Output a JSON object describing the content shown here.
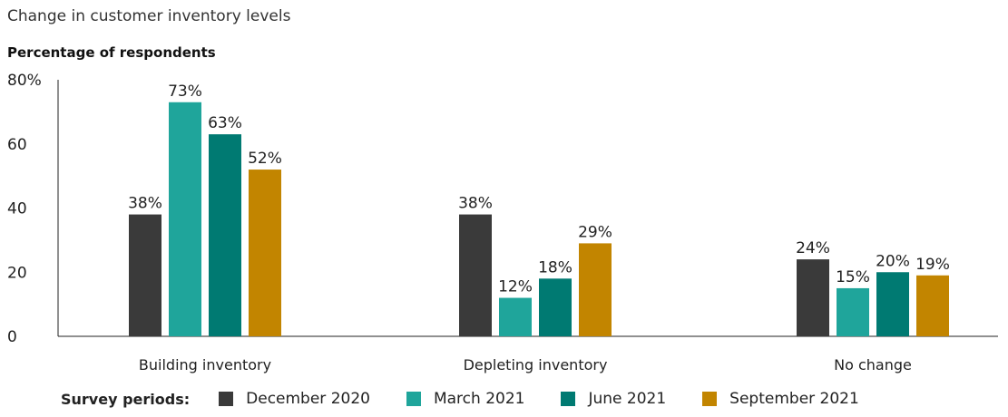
{
  "chart_data": {
    "type": "bar",
    "title": "Change in customer inventory levels",
    "ylabel": "Percentage of respondents",
    "xlabel": "",
    "ylim": [
      0,
      80
    ],
    "yticks": [
      {
        "value": 0,
        "label": "0"
      },
      {
        "value": 20,
        "label": "20"
      },
      {
        "value": 40,
        "label": "40"
      },
      {
        "value": 60,
        "label": "60"
      },
      {
        "value": 80,
        "label": "80%"
      }
    ],
    "categories": [
      "Building inventory",
      "Depleting inventory",
      "No change"
    ],
    "series": [
      {
        "name": "December 2020",
        "color": "#3a3a3a",
        "values": [
          38,
          38,
          24
        ],
        "labels": [
          "38%",
          "38%",
          "24%"
        ]
      },
      {
        "name": "March 2021",
        "color": "#1fa59b",
        "values": [
          73,
          12,
          15
        ],
        "labels": [
          "73%",
          "12%",
          "15%"
        ]
      },
      {
        "name": "June 2021",
        "color": "#007a72",
        "values": [
          63,
          18,
          20
        ],
        "labels": [
          "63%",
          "18%",
          "20%"
        ]
      },
      {
        "name": "September 2021",
        "color": "#c28500",
        "values": [
          52,
          29,
          19
        ],
        "labels": [
          "52%",
          "29%",
          "19%"
        ]
      }
    ],
    "legend": {
      "title": "Survey periods:",
      "placement": "bottom"
    },
    "grid": false
  }
}
